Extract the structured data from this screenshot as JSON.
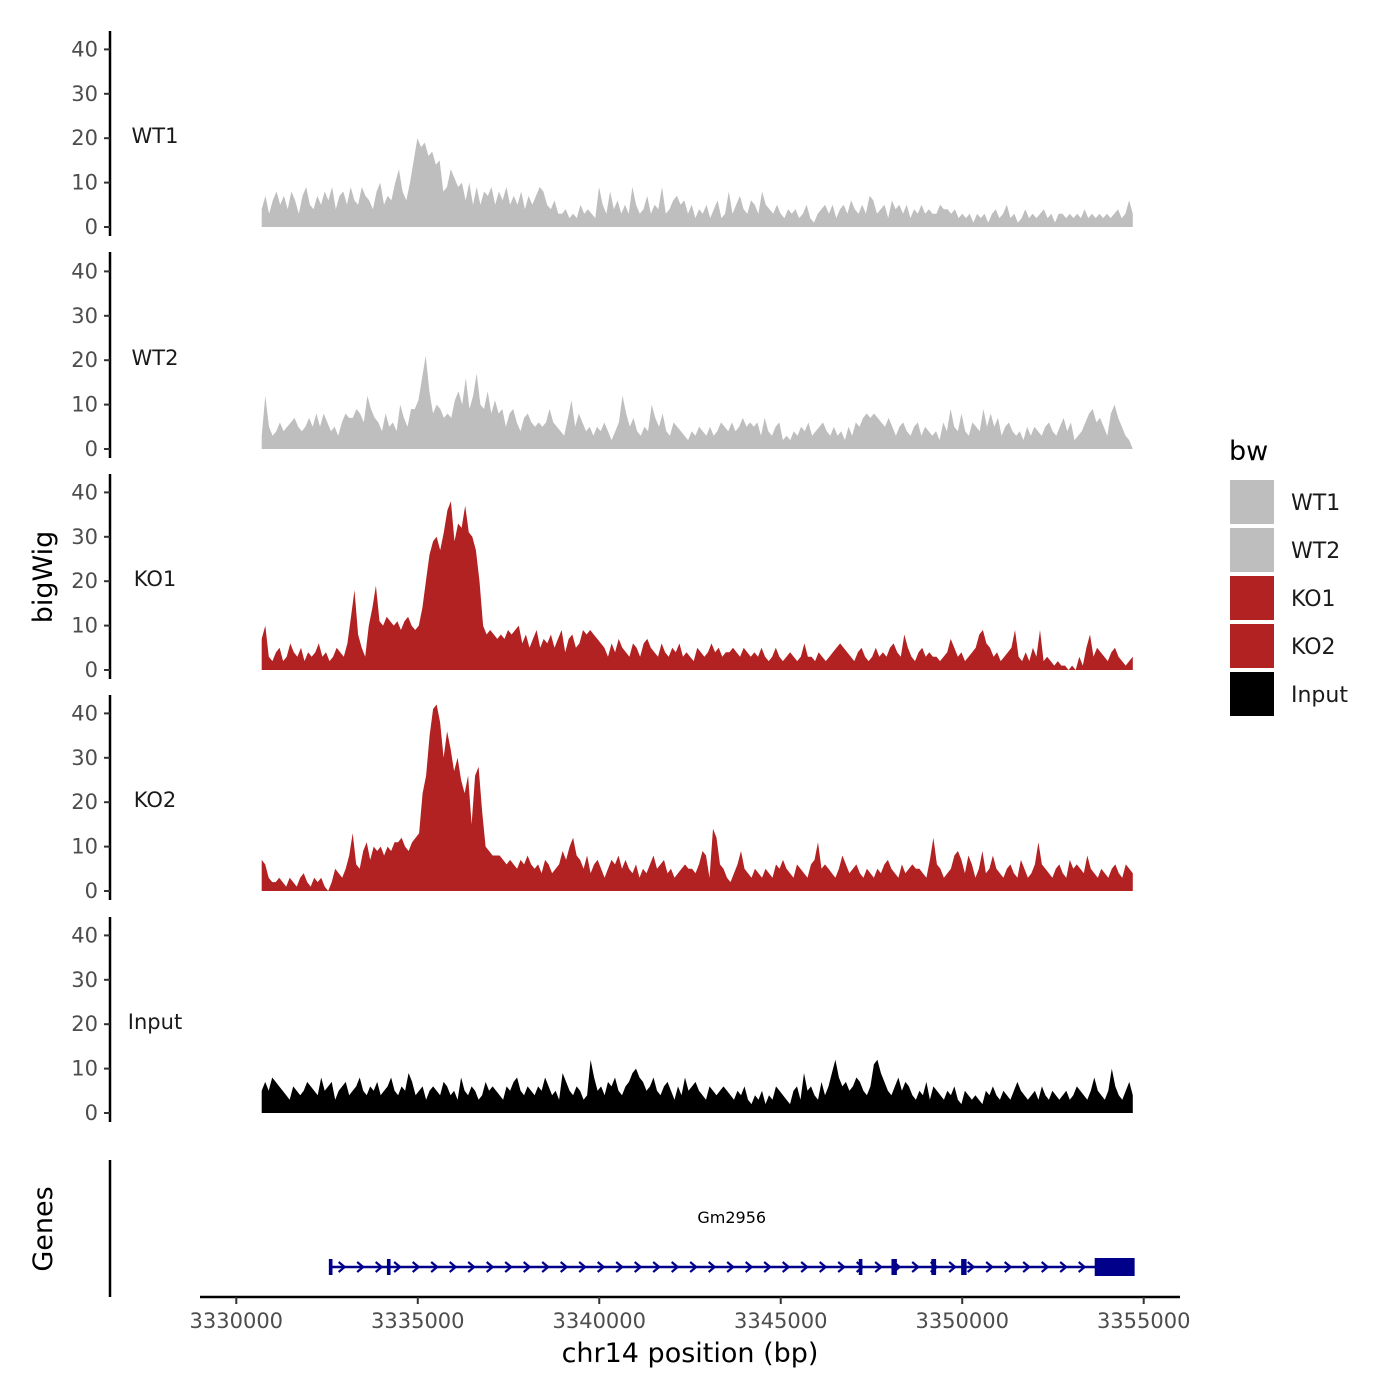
{
  "chart_data": {
    "type": "area",
    "ylabel": "bigWig",
    "xlabel": "chr14 position (bp)",
    "genes_label": "Genes",
    "xlim": [
      3329000,
      3356000
    ],
    "data_range": [
      3330700,
      3354700
    ],
    "x_ticks": [
      3330000,
      3335000,
      3340000,
      3345000,
      3350000,
      3355000
    ],
    "x_tick_labels": [
      "3330000",
      "3335000",
      "3340000",
      "3345000",
      "3350000",
      "3355000"
    ],
    "y_ticks": [
      0,
      10,
      20,
      30,
      40
    ],
    "y_tick_labels": [
      "0",
      "10",
      "20",
      "30",
      "40"
    ],
    "ylim": [
      0,
      43
    ],
    "legend": {
      "title": "bw",
      "entries": [
        {
          "label": "WT1",
          "color": "#bebebe"
        },
        {
          "label": "WT2",
          "color": "#bebebe"
        },
        {
          "label": "KO1",
          "color": "#b22222"
        },
        {
          "label": "KO2",
          "color": "#b22222"
        },
        {
          "label": "Input",
          "color": "#000000"
        }
      ]
    },
    "tracks": [
      {
        "name": "WT1",
        "color": "#bebebe",
        "values": [
          4,
          7,
          3,
          6,
          8,
          5,
          7,
          4,
          8,
          6,
          3,
          7,
          9,
          5,
          4,
          7,
          5,
          8,
          6,
          9,
          4,
          7,
          8,
          5,
          9,
          6,
          5,
          9,
          7,
          6,
          4,
          8,
          10,
          5,
          7,
          6,
          10,
          13,
          8,
          6,
          10,
          15,
          20,
          18,
          19,
          16,
          17,
          14,
          15,
          8,
          9,
          13,
          11,
          9,
          10,
          6,
          10,
          5,
          9,
          5,
          8,
          7,
          9,
          5,
          8,
          6,
          9,
          5,
          7,
          5,
          8,
          4,
          7,
          5,
          7,
          9,
          8,
          5,
          4,
          6,
          3,
          3,
          4,
          2,
          3,
          2,
          5,
          3,
          4,
          3,
          2,
          9,
          5,
          3,
          8,
          4,
          6,
          3,
          5,
          3,
          9,
          5,
          3,
          4,
          7,
          3,
          5,
          4,
          9,
          3,
          4,
          6,
          7,
          5,
          6,
          3,
          5,
          2,
          4,
          3,
          5,
          2,
          4,
          6,
          2,
          3,
          8,
          3,
          5,
          7,
          4,
          3,
          6,
          5,
          3,
          8,
          5,
          4,
          3,
          5,
          3,
          2,
          4,
          3,
          4,
          2,
          3,
          5,
          2,
          1,
          3,
          4,
          5,
          3,
          5,
          2,
          4,
          5,
          3,
          6,
          4,
          3,
          5,
          3,
          7,
          6,
          3,
          4,
          5,
          2,
          6,
          4,
          5,
          3,
          5,
          2,
          4,
          3,
          5,
          3,
          4,
          3,
          3,
          5,
          4,
          4,
          3,
          4,
          2,
          3,
          2,
          3,
          1,
          3,
          2,
          3,
          1,
          3,
          4,
          2,
          3,
          5,
          2,
          3,
          1,
          2,
          4,
          2,
          3,
          2,
          3,
          4,
          2,
          3,
          1,
          3,
          3,
          2,
          3,
          2,
          3,
          2,
          4,
          2,
          3,
          2,
          3,
          2,
          3,
          2,
          3,
          4,
          2,
          3,
          6,
          3
        ]
      },
      {
        "name": "WT2",
        "color": "#bebebe",
        "values": [
          3,
          12,
          5,
          3,
          4,
          6,
          4,
          5,
          6,
          7,
          5,
          4,
          5,
          7,
          5,
          8,
          5,
          8,
          6,
          4,
          5,
          3,
          6,
          8,
          7,
          7,
          9,
          8,
          6,
          12,
          9,
          7,
          6,
          4,
          8,
          5,
          6,
          4,
          10,
          7,
          5,
          9,
          9,
          11,
          16,
          21,
          13,
          8,
          10,
          9,
          7,
          8,
          7,
          11,
          13,
          10,
          16,
          9,
          12,
          17,
          10,
          9,
          13,
          8,
          11,
          8,
          9,
          5,
          8,
          9,
          6,
          4,
          7,
          8,
          6,
          5,
          6,
          5,
          6,
          9,
          6,
          5,
          4,
          3,
          7,
          11,
          5,
          8,
          6,
          4,
          5,
          3,
          5,
          4,
          6,
          4,
          2,
          4,
          6,
          12,
          8,
          5,
          7,
          4,
          3,
          5,
          4,
          10,
          7,
          5,
          8,
          4,
          3,
          6,
          5,
          4,
          3,
          2,
          4,
          3,
          5,
          4,
          3,
          5,
          3,
          4,
          6,
          5,
          4,
          6,
          4,
          5,
          7,
          5,
          6,
          5,
          6,
          3,
          7,
          4,
          3,
          5,
          6,
          2,
          3,
          2,
          4,
          3,
          5,
          4,
          6,
          3,
          4,
          5,
          6,
          4,
          3,
          5,
          3,
          4,
          2,
          5,
          3,
          6,
          5,
          7,
          8,
          7,
          8,
          7,
          6,
          5,
          7,
          5,
          3,
          5,
          6,
          4,
          3,
          5,
          6,
          3,
          5,
          4,
          3,
          4,
          2,
          6,
          4,
          9,
          5,
          4,
          8,
          4,
          3,
          6,
          5,
          4,
          9,
          5,
          8,
          5,
          7,
          3,
          5,
          6,
          4,
          3,
          4,
          2,
          5,
          3,
          5,
          4,
          3,
          5,
          6,
          4,
          3,
          5,
          7,
          4,
          6,
          2,
          3,
          4,
          6,
          8,
          9,
          6,
          7,
          5,
          3,
          8,
          10,
          7,
          5,
          3,
          2,
          0
        ]
      },
      {
        "name": "KO1",
        "color": "#b22222",
        "values": [
          7,
          10,
          3,
          2,
          4,
          5,
          2,
          3,
          6,
          4,
          3,
          5,
          2,
          4,
          3,
          4,
          6,
          3,
          4,
          2,
          3,
          5,
          4,
          3,
          6,
          12,
          18,
          8,
          5,
          3,
          10,
          14,
          19,
          11,
          10,
          12,
          11,
          10,
          11,
          9,
          11,
          12,
          10,
          9,
          10,
          14,
          20,
          26,
          29,
          30,
          27,
          31,
          36,
          38,
          29,
          33,
          32,
          37,
          31,
          30,
          27,
          20,
          10,
          8,
          9,
          8,
          7,
          8,
          7,
          9,
          8,
          9,
          10,
          6,
          8,
          5,
          7,
          9,
          5,
          7,
          6,
          8,
          5,
          7,
          9,
          4,
          7,
          8,
          5,
          6,
          9,
          8,
          9,
          8,
          7,
          6,
          5,
          3,
          6,
          4,
          7,
          5,
          4,
          3,
          6,
          5,
          3,
          6,
          7,
          5,
          4,
          3,
          6,
          4,
          3,
          5,
          4,
          6,
          3,
          4,
          3,
          2,
          5,
          4,
          3,
          4,
          6,
          4,
          5,
          3,
          4,
          4,
          5,
          4,
          3,
          5,
          4,
          3,
          4,
          3,
          5,
          3,
          2,
          3,
          5,
          3,
          2,
          3,
          4,
          3,
          2,
          3,
          6,
          3,
          3,
          2,
          4,
          3,
          2,
          3,
          4,
          5,
          6,
          5,
          4,
          3,
          2,
          4,
          5,
          3,
          2,
          3,
          5,
          3,
          4,
          3,
          5,
          6,
          4,
          3,
          8,
          5,
          3,
          2,
          4,
          5,
          3,
          4,
          3,
          3,
          2,
          3,
          4,
          7,
          5,
          3,
          4,
          2,
          3,
          4,
          5,
          8,
          9,
          6,
          5,
          3,
          4,
          2,
          3,
          4,
          5,
          9,
          3,
          2,
          4,
          2,
          5,
          3,
          9,
          2,
          3,
          2,
          1,
          2,
          1,
          1,
          0,
          1,
          0,
          3,
          1,
          5,
          8,
          3,
          5,
          4,
          3,
          2,
          4,
          5,
          3,
          2,
          1,
          2,
          3
        ]
      },
      {
        "name": "KO2",
        "color": "#b22222",
        "values": [
          7,
          6,
          3,
          2,
          2,
          3,
          2,
          1,
          3,
          2,
          1,
          3,
          4,
          2,
          1,
          3,
          2,
          3,
          1,
          0,
          2,
          5,
          4,
          3,
          5,
          8,
          13,
          6,
          5,
          9,
          11,
          7,
          10,
          9,
          10,
          8,
          10,
          9,
          11,
          11,
          12,
          10,
          9,
          11,
          12,
          13,
          22,
          26,
          35,
          41,
          42,
          38,
          30,
          36,
          32,
          27,
          30,
          25,
          22,
          26,
          15,
          26,
          28,
          18,
          10,
          9,
          8,
          8,
          8,
          7,
          6,
          7,
          6,
          5,
          7,
          6,
          8,
          6,
          5,
          6,
          4,
          7,
          6,
          4,
          5,
          6,
          9,
          7,
          10,
          12,
          8,
          7,
          5,
          8,
          4,
          6,
          7,
          5,
          3,
          5,
          7,
          6,
          8,
          5,
          7,
          5,
          4,
          6,
          3,
          5,
          4,
          6,
          8,
          5,
          6,
          7,
          4,
          5,
          3,
          4,
          5,
          6,
          5,
          5,
          4,
          6,
          9,
          8,
          3,
          14,
          12,
          6,
          5,
          3,
          2,
          4,
          6,
          9,
          5,
          4,
          3,
          5,
          4,
          3,
          5,
          4,
          3,
          6,
          5,
          7,
          5,
          4,
          3,
          6,
          5,
          4,
          3,
          6,
          7,
          11,
          5,
          6,
          5,
          4,
          3,
          5,
          8,
          6,
          4,
          5,
          6,
          4,
          3,
          5,
          4,
          3,
          5,
          4,
          6,
          7,
          5,
          4,
          3,
          6,
          4,
          5,
          6,
          5,
          5,
          4,
          3,
          7,
          12,
          6,
          5,
          3,
          4,
          5,
          8,
          9,
          7,
          4,
          8,
          6,
          3,
          5,
          9,
          4,
          5,
          8,
          5,
          4,
          3,
          5,
          6,
          4,
          3,
          7,
          5,
          3,
          4,
          6,
          11,
          6,
          5,
          4,
          3,
          5,
          6,
          4,
          3,
          7,
          5,
          6,
          5,
          4,
          8,
          5,
          4,
          3,
          5,
          4,
          3,
          5,
          6,
          4,
          3,
          6,
          5,
          4
        ]
      },
      {
        "name": "Input",
        "color": "#000000",
        "values": [
          5,
          7,
          5,
          8,
          7,
          6,
          5,
          4,
          3,
          6,
          5,
          4,
          5,
          7,
          6,
          5,
          4,
          8,
          5,
          6,
          7,
          3,
          5,
          6,
          7,
          4,
          5,
          6,
          8,
          5,
          4,
          6,
          5,
          7,
          4,
          5,
          6,
          8,
          5,
          4,
          6,
          5,
          9,
          7,
          4,
          5,
          6,
          3,
          5,
          6,
          5,
          4,
          7,
          6,
          4,
          5,
          3,
          8,
          5,
          4,
          6,
          5,
          3,
          4,
          7,
          5,
          6,
          5,
          4,
          3,
          6,
          5,
          7,
          8,
          5,
          4,
          6,
          5,
          4,
          6,
          5,
          8,
          6,
          4,
          5,
          3,
          9,
          7,
          5,
          4,
          6,
          5,
          3,
          4,
          12,
          8,
          5,
          6,
          4,
          7,
          6,
          8,
          5,
          4,
          6,
          7,
          9,
          10,
          8,
          7,
          5,
          6,
          8,
          5,
          4,
          6,
          7,
          5,
          3,
          6,
          4,
          8,
          5,
          6,
          7,
          5,
          4,
          3,
          6,
          5,
          4,
          5,
          6,
          5,
          4,
          3,
          5,
          4,
          6,
          3,
          2,
          4,
          3,
          5,
          2,
          4,
          3,
          6,
          5,
          4,
          3,
          2,
          5,
          6,
          3,
          9,
          5,
          6,
          4,
          3,
          7,
          4,
          6,
          9,
          12,
          8,
          6,
          7,
          5,
          6,
          8,
          7,
          5,
          4,
          6,
          11,
          12,
          9,
          7,
          5,
          4,
          6,
          8,
          5,
          7,
          6,
          4,
          3,
          5,
          4,
          7,
          3,
          6,
          5,
          4,
          3,
          5,
          4,
          6,
          3,
          2,
          5,
          4,
          3,
          4,
          3,
          2,
          5,
          4,
          6,
          4,
          3,
          5,
          4,
          3,
          5,
          7,
          5,
          4,
          3,
          4,
          5,
          3,
          6,
          4,
          3,
          5,
          4,
          3,
          4,
          5,
          3,
          4,
          6,
          5,
          4,
          3,
          5,
          8,
          5,
          4,
          3,
          5,
          10,
          6,
          4,
          3,
          5,
          7,
          4
        ]
      }
    ],
    "gene": {
      "name": "Gm2956",
      "color": "#00008b",
      "start": 3332600,
      "end": 3354700,
      "exons": [
        [
          3332550,
          3332650
        ],
        [
          3334150,
          3334250
        ],
        [
          3347150,
          3347250
        ],
        [
          3348050,
          3348200
        ],
        [
          3349150,
          3349280
        ],
        [
          3349970,
          3350120
        ],
        [
          3353650,
          3354750
        ]
      ]
    }
  }
}
